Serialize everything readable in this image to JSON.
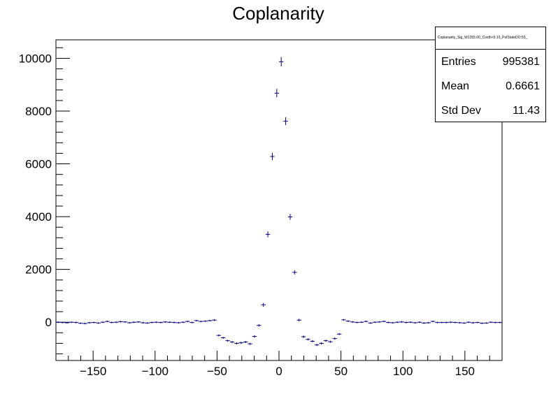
{
  "chart_data": {
    "type": "scatter",
    "title": "Coplanarity",
    "xlabel": "",
    "ylabel": "",
    "xlim": [
      -180,
      180
    ],
    "ylim": [
      -1450,
      10700
    ],
    "xticks": [
      -150,
      -100,
      -50,
      0,
      50,
      100,
      150
    ],
    "yticks": [
      0,
      2000,
      4000,
      6000,
      8000,
      10000
    ],
    "x_tick_labels": [
      "−150",
      "−100",
      "−50",
      "0",
      "50",
      "100",
      "150"
    ],
    "y_tick_labels": [
      "0",
      "2000",
      "4000",
      "6000",
      "8000",
      "10000"
    ],
    "bin_width": 3.6,
    "grid": false,
    "marker_color": "#000080",
    "series": [
      {
        "x": [
          -178.2,
          -174.6,
          -171,
          -167.4,
          -163.8,
          -160.2,
          -156.6,
          -153,
          -149.4,
          -145.8,
          -142.2,
          -138.6,
          -135,
          -131.4,
          -127.8,
          -124.2,
          -120.6,
          -117,
          -113.4,
          -109.8,
          -106.2,
          -102.6,
          -99,
          -95.4,
          -91.8,
          -88.2,
          -84.6,
          -81,
          -77.4,
          -73.8,
          -70.2,
          -66.6,
          -63,
          -59.4,
          -55.8,
          -52.2,
          -48.6,
          -45,
          -41.4,
          -37.8,
          -34.2,
          -30.6,
          -27,
          -23.4,
          -19.8,
          -16.2,
          -12.6,
          -9,
          -5.4,
          -1.8,
          1.8,
          5.4,
          9,
          12.6,
          16.2,
          19.8,
          23.4,
          27,
          30.6,
          34.2,
          37.8,
          41.4,
          45,
          48.6,
          52.2,
          55.8,
          59.4,
          63,
          66.6,
          70.2,
          73.8,
          77.4,
          81,
          84.6,
          88.2,
          91.8,
          95.4,
          99,
          102.6,
          106.2,
          109.8,
          113.4,
          117,
          120.6,
          124.2,
          127.8,
          131.4,
          135,
          138.6,
          142.2,
          145.8,
          149.4,
          153,
          156.6,
          160.2,
          163.8,
          167.4,
          171,
          174.6,
          178.2
        ],
        "y": [
          0,
          -10,
          -20,
          0,
          -10,
          -40,
          -50,
          -20,
          -10,
          -30,
          0,
          30,
          -10,
          0,
          20,
          10,
          -20,
          0,
          10,
          -20,
          -30,
          -10,
          0,
          -10,
          10,
          0,
          -10,
          -20,
          0,
          30,
          -10,
          60,
          30,
          40,
          60,
          80,
          -500,
          -590,
          -700,
          -750,
          -800,
          -780,
          -750,
          -820,
          -540,
          -120,
          660,
          3330,
          6280,
          8680,
          9870,
          7620,
          3990,
          1890,
          80,
          -550,
          -650,
          -720,
          -860,
          -800,
          -700,
          -740,
          -620,
          -450,
          90,
          40,
          10,
          -10,
          0,
          30,
          -30,
          0,
          10,
          30,
          -10,
          -20,
          0,
          10,
          -10,
          0,
          -20,
          0,
          -30,
          -20,
          30,
          -10,
          -10,
          -10,
          0,
          -10,
          -20,
          -30,
          0,
          -20,
          -10,
          -40,
          -30,
          0,
          -10,
          -10
        ],
        "errors": [
          30,
          30,
          30,
          30,
          30,
          30,
          30,
          30,
          30,
          30,
          30,
          30,
          30,
          30,
          30,
          30,
          30,
          30,
          30,
          30,
          30,
          30,
          30,
          30,
          30,
          30,
          30,
          30,
          30,
          30,
          30,
          30,
          30,
          30,
          30,
          30,
          35,
          36,
          38,
          39,
          40,
          40,
          40,
          40,
          45,
          50,
          70,
          110,
          140,
          160,
          175,
          150,
          110,
          80,
          50,
          45,
          40,
          40,
          40,
          40,
          40,
          40,
          40,
          38,
          30,
          30,
          30,
          30,
          30,
          30,
          30,
          30,
          30,
          30,
          30,
          30,
          30,
          30,
          30,
          30,
          30,
          30,
          30,
          30,
          30,
          30,
          30,
          30,
          30,
          30,
          30,
          30,
          30,
          30,
          30,
          30,
          30,
          30,
          30,
          30
        ]
      }
    ]
  },
  "stats": {
    "title": "Coplanarity_Sig_W1355.00_Costh<0.10_PolStateDO:50_",
    "rows": [
      {
        "label": "Entries",
        "value": "995381"
      },
      {
        "label": "Mean",
        "value": "0.6661"
      },
      {
        "label": "Std Dev",
        "value": "11.43"
      }
    ]
  }
}
